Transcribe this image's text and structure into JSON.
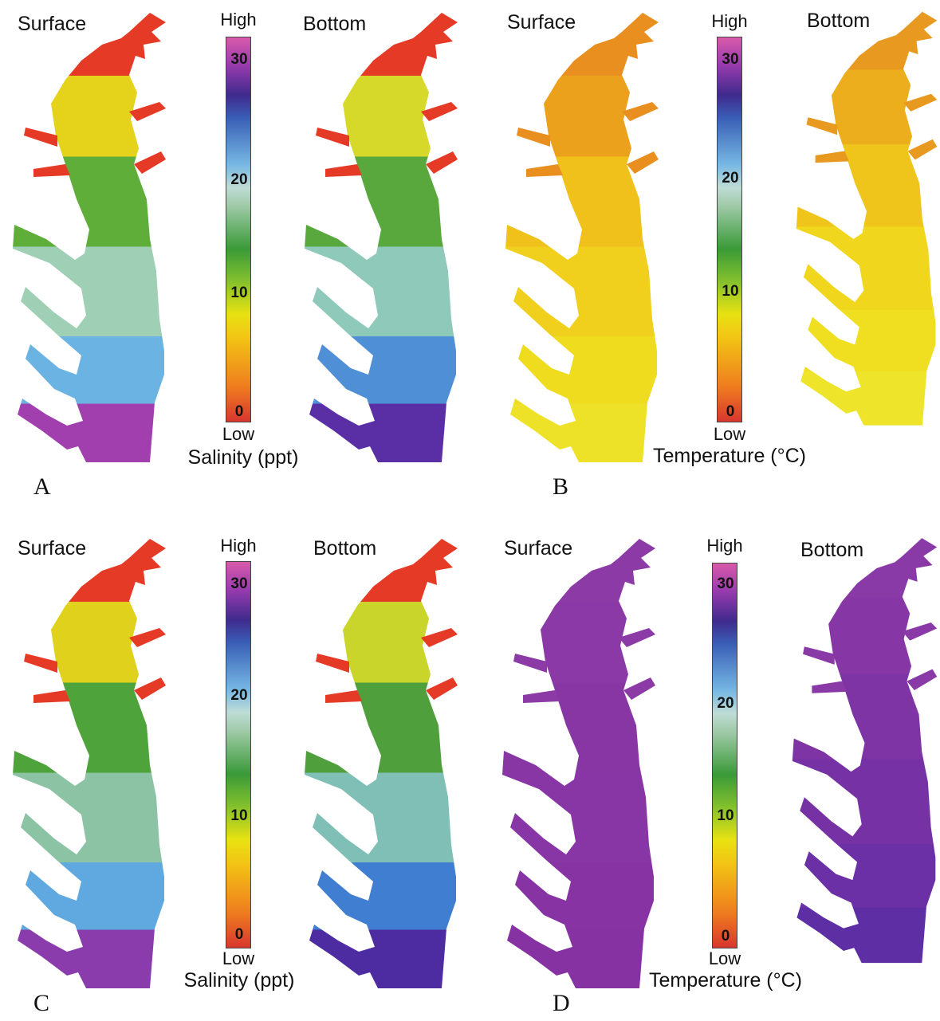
{
  "panels": [
    {
      "label": "A",
      "surface_title": "Surface",
      "bottom_title": "Bottom",
      "legend": {
        "high": "High",
        "low": "Low",
        "quantity": "Salinity (ppt)",
        "ticks": [
          "30",
          "20",
          "10",
          "0"
        ]
      },
      "surface_colors": [
        "#e53a26",
        "#e5d21a",
        "#5fae3a",
        "#9fcfb4",
        "#6ab3e2",
        "#a13fae"
      ],
      "bottom_colors": [
        "#e53a26",
        "#d6d92a",
        "#58a83e",
        "#8fc9ba",
        "#4f8fd6",
        "#5a2fa5"
      ]
    },
    {
      "label": "B",
      "surface_title": "Surface",
      "bottom_title": "Bottom",
      "legend": {
        "high": "High",
        "low": "Low",
        "quantity": "Temperature (°C)",
        "ticks": [
          "30",
          "20",
          "10",
          "0"
        ]
      },
      "surface_colors": [
        "#e88f1f",
        "#eba11b",
        "#efc11a",
        "#f0d01c",
        "#efdc1f",
        "#eee228"
      ],
      "bottom_colors": [
        "#e89a20",
        "#ecae1c",
        "#f0c51b",
        "#f0d61d",
        "#efdf20",
        "#eee429"
      ]
    },
    {
      "label": "C",
      "surface_title": "Surface",
      "bottom_title": "Bottom",
      "legend": {
        "high": "High",
        "low": "Low",
        "quantity": "Salinity (ppt)",
        "ticks": [
          "30",
          "20",
          "10",
          "0"
        ]
      },
      "surface_colors": [
        "#e53a26",
        "#e0d11c",
        "#4ea33a",
        "#8cc3a4",
        "#5fa9e0",
        "#8a3cac"
      ],
      "bottom_colors": [
        "#e53a26",
        "#c9d52a",
        "#4f9f3d",
        "#7fbfb6",
        "#3f7ed0",
        "#4d2ba0"
      ]
    },
    {
      "label": "D",
      "surface_title": "Surface",
      "bottom_title": "Bottom",
      "legend": {
        "high": "High",
        "low": "Low",
        "quantity": "Temperature (°C)",
        "ticks": [
          "30",
          "20",
          "10",
          "0"
        ]
      },
      "surface_colors": [
        "#8b3aa6",
        "#8a39a6",
        "#8936a5",
        "#8835a5",
        "#8733a4",
        "#8632a3"
      ],
      "bottom_colors": [
        "#8a3aa6",
        "#8637a5",
        "#7f34a5",
        "#7632a5",
        "#6c30a6",
        "#5d2ea4"
      ]
    }
  ]
}
